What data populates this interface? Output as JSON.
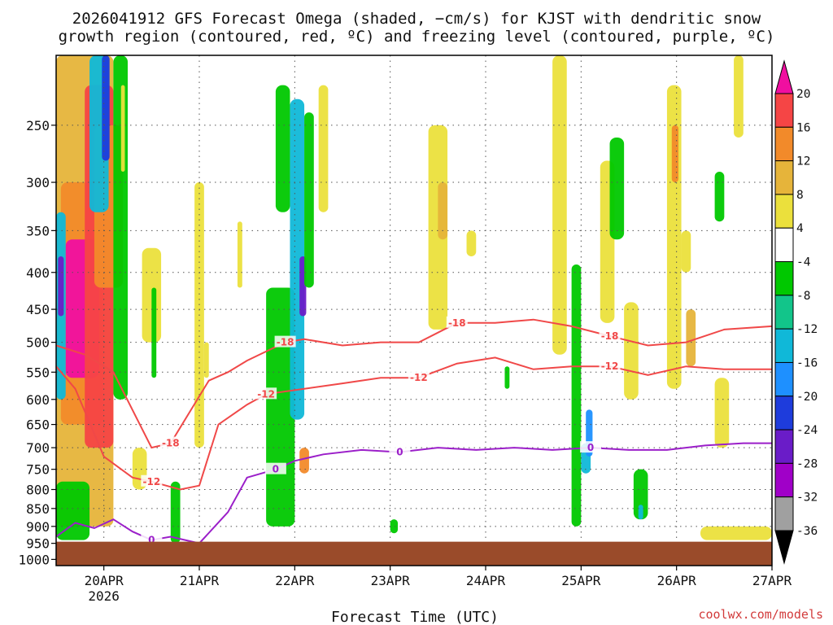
{
  "chart_data": {
    "type": "heatmap",
    "title_line1": "2026041912 GFS Forecast Omega (shaded, −cm/s) for KJST with dendritic snow",
    "title_line2": "growth region (contoured, red, ºC) and freezing level (contoured, purple, ºC)",
    "xlabel": "Forecast Time (UTC)",
    "credit": "coolwx.com/models",
    "x_ticks": [
      {
        "label": "20APR",
        "sub": "2026",
        "t": 0.5
      },
      {
        "label": "21APR",
        "sub": "",
        "t": 1.5
      },
      {
        "label": "22APR",
        "sub": "",
        "t": 2.5
      },
      {
        "label": "23APR",
        "sub": "",
        "t": 3.5
      },
      {
        "label": "24APR",
        "sub": "",
        "t": 4.5
      },
      {
        "label": "25APR",
        "sub": "",
        "t": 5.5
      },
      {
        "label": "26APR",
        "sub": "",
        "t": 6.5
      },
      {
        "label": "27APR",
        "sub": "",
        "t": 7.5
      }
    ],
    "x_range": [
      0,
      7.5
    ],
    "y_ticks": [
      250,
      300,
      350,
      400,
      450,
      500,
      550,
      600,
      650,
      700,
      750,
      800,
      850,
      900,
      950,
      1000
    ],
    "y_range_hpa": [
      200,
      1020
    ],
    "colorbar": {
      "labels": [
        "20",
        "16",
        "12",
        "8",
        "4",
        "-4",
        "-8",
        "-12",
        "-16",
        "-20",
        "-24",
        "-28",
        "-32",
        "-36"
      ],
      "colors": [
        "#f00fa0",
        "#f54545",
        "#f28a2a",
        "#e6b43a",
        "#ebe03c",
        "#ffffff",
        "#00c800",
        "#12c58a",
        "#10b8d8",
        "#1e90ff",
        "#1e3cdc",
        "#6a1cc8",
        "#a000c8",
        "#a0a0a0",
        "#000000"
      ]
    },
    "terrain_color": "#9a4b2a",
    "series": [
      {
        "name": "-18",
        "color": "#f04848",
        "labels": [
          "-18",
          "-18",
          "-18",
          "-18"
        ],
        "x": [
          0,
          0.3,
          0.6,
          1.0,
          1.2,
          1.6,
          1.8,
          2.0,
          2.4,
          2.6,
          3.0,
          3.4,
          3.8,
          4.2,
          4.6,
          5.0,
          5.4,
          5.8,
          6.2,
          6.6,
          7.0,
          7.5
        ],
        "p": [
          505,
          520,
          550,
          700,
          690,
          565,
          550,
          530,
          500,
          495,
          505,
          500,
          500,
          470,
          470,
          465,
          475,
          490,
          505,
          500,
          480,
          475
        ]
      },
      {
        "name": "-12",
        "color": "#f04848",
        "labels": [
          "-12",
          "-12",
          "-12",
          "-12"
        ],
        "x": [
          0,
          0.2,
          0.5,
          0.8,
          1.0,
          1.3,
          1.5,
          1.7,
          2.0,
          2.2,
          2.6,
          3.0,
          3.4,
          3.8,
          4.2,
          4.6,
          5.0,
          5.4,
          5.8,
          6.2,
          6.6,
          7.0,
          7.5
        ],
        "p": [
          540,
          580,
          720,
          770,
          780,
          800,
          790,
          650,
          610,
          590,
          580,
          570,
          560,
          560,
          535,
          525,
          545,
          540,
          540,
          555,
          540,
          545,
          545
        ]
      },
      {
        "name": "0",
        "color": "#9b1fc9",
        "labels": [
          "0",
          "0",
          "0",
          "0"
        ],
        "x": [
          0,
          0.2,
          0.4,
          0.6,
          0.8,
          1.0,
          1.2,
          1.5,
          1.8,
          2.0,
          2.3,
          2.5,
          2.8,
          3.2,
          3.6,
          4.0,
          4.4,
          4.8,
          5.2,
          5.6,
          6.0,
          6.4,
          6.8,
          7.2,
          7.5
        ],
        "p": [
          930,
          890,
          905,
          880,
          915,
          940,
          930,
          950,
          860,
          770,
          750,
          730,
          715,
          705,
          710,
          700,
          705,
          700,
          705,
          700,
          705,
          705,
          695,
          690,
          690
        ]
      }
    ]
  }
}
